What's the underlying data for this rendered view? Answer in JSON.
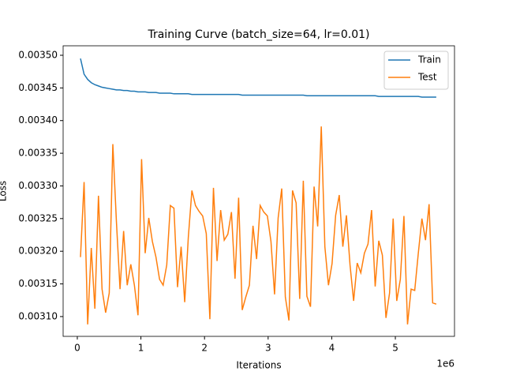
{
  "chart_data": {
    "type": "line",
    "title": "Training Curve (batch_size=64, lr=0.01)",
    "xlabel": "Iterations",
    "ylabel": "Loss",
    "x_offset_label": "1e6",
    "x": [
      50000,
      106500,
      163000,
      219500,
      276000,
      332500,
      389000,
      445500,
      502000,
      558500,
      615000,
      671500,
      728000,
      784500,
      841000,
      897500,
      954000,
      1010500,
      1067000,
      1123500,
      1180000,
      1236500,
      1293000,
      1349500,
      1406000,
      1462500,
      1519000,
      1575500,
      1632000,
      1688500,
      1745000,
      1801500,
      1858000,
      1914500,
      1971000,
      2027500,
      2084000,
      2140500,
      2197000,
      2253500,
      2310000,
      2366500,
      2423000,
      2479500,
      2536000,
      2592500,
      2649000,
      2705500,
      2762000,
      2818500,
      2875000,
      2931500,
      2988000,
      3044500,
      3101000,
      3157500,
      3214000,
      3270500,
      3327000,
      3383500,
      3440000,
      3496500,
      3553000,
      3609500,
      3666000,
      3722500,
      3779000,
      3835500,
      3892000,
      3948500,
      4005000,
      4061500,
      4118000,
      4174500,
      4231000,
      4287500,
      4344000,
      4400500,
      4457000,
      4513500,
      4570000,
      4626500,
      4683000,
      4739500,
      4796000,
      4852500,
      4909000,
      4965500,
      5022000,
      5078500,
      5135000,
      5191500,
      5248000,
      5304500,
      5361000,
      5417500,
      5474000,
      5530500,
      5587000,
      5643500
    ],
    "series": [
      {
        "name": "Train",
        "color": "#1f77b4",
        "values": [
          0.003495,
          0.003471,
          0.003463,
          0.003458,
          0.003455,
          0.003453,
          0.003451,
          0.00345,
          0.003449,
          0.003448,
          0.003447,
          0.003447,
          0.003446,
          0.003446,
          0.003445,
          0.003445,
          0.003444,
          0.003444,
          0.003444,
          0.003443,
          0.003443,
          0.003443,
          0.003442,
          0.003442,
          0.003442,
          0.003442,
          0.003441,
          0.003441,
          0.003441,
          0.003441,
          0.003441,
          0.00344,
          0.00344,
          0.00344,
          0.00344,
          0.00344,
          0.00344,
          0.00344,
          0.00344,
          0.00344,
          0.00344,
          0.00344,
          0.00344,
          0.00344,
          0.00344,
          0.003439,
          0.003439,
          0.003439,
          0.003439,
          0.003439,
          0.003439,
          0.003439,
          0.003439,
          0.003439,
          0.003439,
          0.003439,
          0.003439,
          0.003439,
          0.003439,
          0.003439,
          0.003439,
          0.003439,
          0.003439,
          0.003438,
          0.003438,
          0.003438,
          0.003438,
          0.003438,
          0.003438,
          0.003438,
          0.003438,
          0.003438,
          0.003438,
          0.003438,
          0.003438,
          0.003438,
          0.003438,
          0.003438,
          0.003438,
          0.003438,
          0.003438,
          0.003438,
          0.003438,
          0.003437,
          0.003437,
          0.003437,
          0.003437,
          0.003437,
          0.003437,
          0.003437,
          0.003437,
          0.003437,
          0.003437,
          0.003437,
          0.003437,
          0.003436,
          0.003436,
          0.003436,
          0.003436,
          0.003436
        ]
      },
      {
        "name": "Test",
        "color": "#ff7f0e",
        "values": [
          0.003191,
          0.003306,
          0.003088,
          0.003205,
          0.003112,
          0.003285,
          0.003142,
          0.003106,
          0.003136,
          0.003364,
          0.003245,
          0.003142,
          0.003231,
          0.003148,
          0.00318,
          0.003148,
          0.003102,
          0.003341,
          0.003197,
          0.003251,
          0.003215,
          0.003191,
          0.003157,
          0.003148,
          0.003179,
          0.00327,
          0.003266,
          0.003145,
          0.003207,
          0.003122,
          0.003221,
          0.003293,
          0.00327,
          0.003261,
          0.003254,
          0.003227,
          0.003096,
          0.003297,
          0.003185,
          0.003263,
          0.003217,
          0.003226,
          0.00326,
          0.003158,
          0.003282,
          0.00311,
          0.00313,
          0.003148,
          0.003239,
          0.003188,
          0.00327,
          0.00326,
          0.003254,
          0.003215,
          0.003134,
          0.003251,
          0.003296,
          0.00313,
          0.003094,
          0.003293,
          0.003274,
          0.003127,
          0.003308,
          0.003131,
          0.003115,
          0.003299,
          0.003238,
          0.003391,
          0.003207,
          0.003148,
          0.003181,
          0.003255,
          0.003286,
          0.003207,
          0.003255,
          0.003179,
          0.003124,
          0.003182,
          0.003167,
          0.003197,
          0.003211,
          0.003263,
          0.003146,
          0.003216,
          0.003194,
          0.003098,
          0.003136,
          0.00325,
          0.003124,
          0.003157,
          0.003254,
          0.003088,
          0.003142,
          0.00314,
          0.003197,
          0.00325,
          0.003217,
          0.003272,
          0.003121,
          0.003119
        ]
      }
    ],
    "xlim": [
      -223000,
      5930000
    ],
    "ylim": [
      0.0030697,
      0.0035145
    ],
    "xticks": [
      {
        "value": 0,
        "label": "0"
      },
      {
        "value": 1000000,
        "label": "1"
      },
      {
        "value": 2000000,
        "label": "2"
      },
      {
        "value": 3000000,
        "label": "3"
      },
      {
        "value": 4000000,
        "label": "4"
      },
      {
        "value": 5000000,
        "label": "5"
      }
    ],
    "yticks": [
      {
        "value": 0.0031,
        "label": "0.00310"
      },
      {
        "value": 0.00315,
        "label": "0.00315"
      },
      {
        "value": 0.0032,
        "label": "0.00320"
      },
      {
        "value": 0.00325,
        "label": "0.00325"
      },
      {
        "value": 0.0033,
        "label": "0.00330"
      },
      {
        "value": 0.00335,
        "label": "0.00335"
      },
      {
        "value": 0.0034,
        "label": "0.00340"
      },
      {
        "value": 0.00345,
        "label": "0.00345"
      },
      {
        "value": 0.0035,
        "label": "0.00350"
      }
    ],
    "grid": false,
    "legend": "upper right"
  }
}
